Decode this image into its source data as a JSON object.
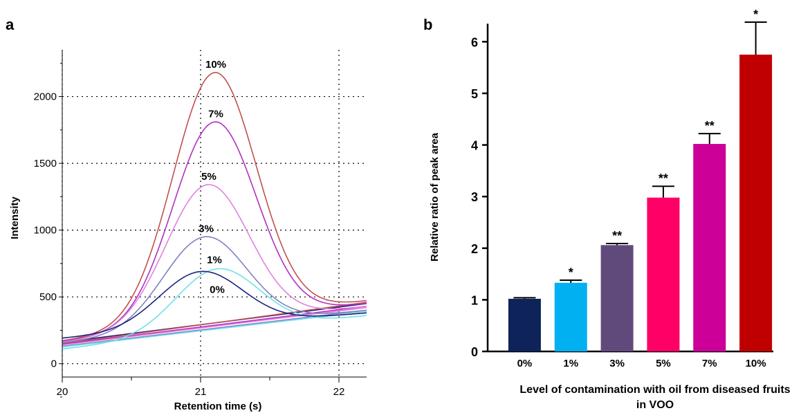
{
  "chart_data": [
    {
      "panel": "a",
      "type": "line",
      "xlabel": "Retention time (s)",
      "ylabel": "Intensity",
      "xlim": [
        20,
        22.2
      ],
      "ylim": [
        -100,
        2350
      ],
      "xticks": [
        20,
        21,
        22
      ],
      "yticks": [
        0,
        500,
        1000,
        1500,
        2000
      ],
      "grid": true,
      "series": [
        {
          "name": "10%",
          "color": "#c0504d",
          "peak_x": 21.1,
          "peak_y": 2180,
          "start_y": 170,
          "end_y": 470
        },
        {
          "name": "7%",
          "color": "#b030c0",
          "peak_x": 21.1,
          "peak_y": 1810,
          "start_y": 165,
          "end_y": 450
        },
        {
          "name": "5%",
          "color": "#e080e0",
          "peak_x": 21.05,
          "peak_y": 1340,
          "start_y": 160,
          "end_y": 430
        },
        {
          "name": "3%",
          "color": "#8080c0",
          "peak_x": 21.03,
          "peak_y": 950,
          "start_y": 155,
          "end_y": 400
        },
        {
          "name": "1%",
          "color": "#70e0e8",
          "peak_x": 21.12,
          "peak_y": 710,
          "start_y": 110,
          "end_y": 360
        },
        {
          "name": "0%",
          "color": "#1a237e",
          "peak_x": 21.0,
          "peak_y": 690,
          "start_y": 190,
          "end_y": 380
        }
      ],
      "baselines": [
        {
          "color": "#1a237e",
          "start_y": 160,
          "end_y": 450
        },
        {
          "color": "#c0504d",
          "start_y": 150,
          "end_y": 460
        },
        {
          "color": "#b030c0",
          "start_y": 145,
          "end_y": 430
        },
        {
          "color": "#e080e0",
          "start_y": 140,
          "end_y": 420
        },
        {
          "color": "#8080c0",
          "start_y": 130,
          "end_y": 400
        },
        {
          "color": "#70e0e8",
          "start_y": 125,
          "end_y": 390
        }
      ]
    },
    {
      "panel": "b",
      "type": "bar",
      "xlabel_line1": "Level of contamination with oil from diseased fruits",
      "xlabel_line2": "in VOO",
      "ylabel": "Relative ratio of peak area",
      "ylim": [
        0,
        6.5
      ],
      "yticks": [
        0,
        1,
        2,
        3,
        4,
        5,
        6
      ],
      "categories": [
        "0%",
        "1%",
        "3%",
        "5%",
        "7%",
        "10%"
      ],
      "values": [
        1.02,
        1.33,
        2.06,
        2.98,
        4.02,
        5.75
      ],
      "errors": [
        0.02,
        0.05,
        0.03,
        0.22,
        0.2,
        0.63
      ],
      "significance": [
        "",
        "*",
        "**",
        "**",
        "**",
        "*"
      ],
      "colors": [
        "#0d2359",
        "#00b0f0",
        "#604a7b",
        "#ff0066",
        "#cc0099",
        "#c00000"
      ]
    }
  ]
}
